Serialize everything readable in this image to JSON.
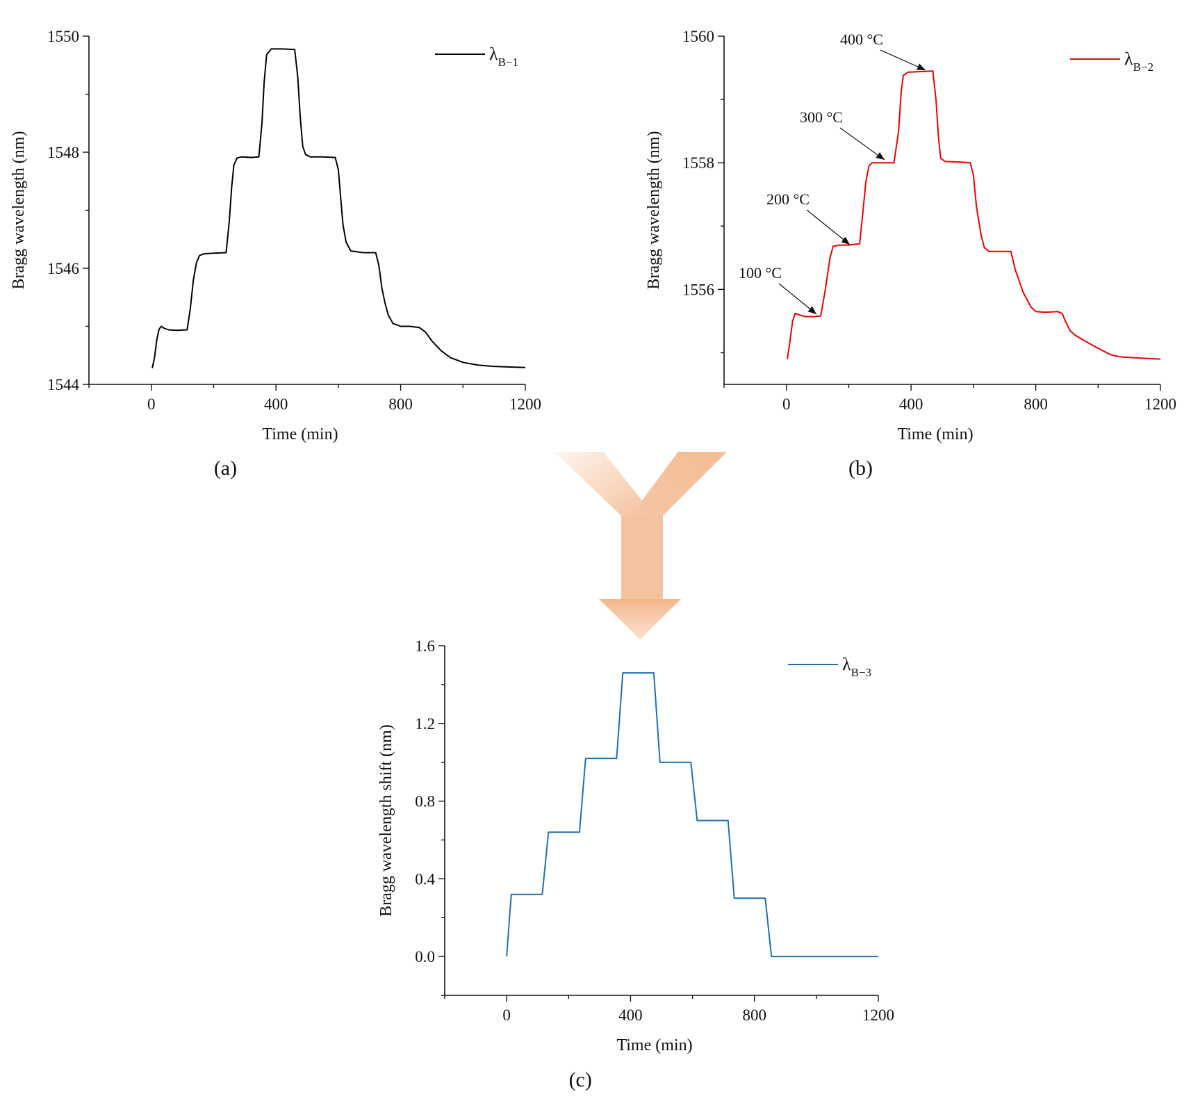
{
  "chart_data": [
    {
      "panel": "(a)",
      "type": "line",
      "xlabel": "Time (min)",
      "ylabel": "Bragg wavelength (nm)",
      "xlim": [
        -200,
        1200
      ],
      "ylim": [
        1544,
        1550
      ],
      "xticks": [
        0,
        400,
        800,
        1200
      ],
      "yticks": [
        1544,
        1546,
        1548,
        1550
      ],
      "xtick_labels": [
        "0",
        "400",
        "800",
        "1200"
      ],
      "ytick_labels": [
        "1544",
        "1546",
        "1548",
        "1550"
      ],
      "legend_position": "top-right",
      "series": [
        {
          "name": "λB−1",
          "legend_main": "λ",
          "legend_sub": "B−1",
          "color": "#000000",
          "x": [
            3,
            10,
            18,
            25,
            32,
            40,
            55,
            80,
            115,
            125,
            135,
            145,
            155,
            170,
            200,
            240,
            250,
            258,
            265,
            275,
            290,
            320,
            345,
            355,
            362,
            370,
            385,
            420,
            460,
            470,
            478,
            486,
            495,
            510,
            550,
            590,
            600,
            608,
            615,
            625,
            640,
            680,
            720,
            730,
            740,
            750,
            760,
            775,
            800,
            830,
            860,
            880,
            900,
            930,
            960,
            1000,
            1050,
            1100,
            1150,
            1200
          ],
          "y": [
            1544.28,
            1544.45,
            1544.78,
            1544.95,
            1545.0,
            1544.97,
            1544.94,
            1544.93,
            1544.94,
            1545.3,
            1545.8,
            1546.1,
            1546.22,
            1546.25,
            1546.26,
            1546.27,
            1546.8,
            1547.4,
            1547.78,
            1547.9,
            1547.92,
            1547.91,
            1547.92,
            1548.5,
            1549.2,
            1549.68,
            1549.78,
            1549.78,
            1549.77,
            1549.3,
            1548.6,
            1548.1,
            1547.96,
            1547.92,
            1547.92,
            1547.91,
            1547.7,
            1547.2,
            1546.75,
            1546.45,
            1546.3,
            1546.27,
            1546.27,
            1546.05,
            1545.65,
            1545.4,
            1545.2,
            1545.05,
            1545.0,
            1545.0,
            1544.98,
            1544.9,
            1544.75,
            1544.58,
            1544.46,
            1544.38,
            1544.33,
            1544.31,
            1544.3,
            1544.29
          ]
        }
      ]
    },
    {
      "panel": "(b)",
      "type": "line",
      "xlabel": "Time (min)",
      "ylabel": "Bragg wavelength (nm)",
      "xlim": [
        -200,
        1200
      ],
      "ylim": [
        1554.5,
        1560
      ],
      "xticks": [
        0,
        400,
        800,
        1200
      ],
      "yticks": [
        1556,
        1558,
        1560
      ],
      "xtick_labels": [
        "0",
        "400",
        "800",
        "1200"
      ],
      "ytick_labels": [
        "1556",
        "1558",
        "1560"
      ],
      "legend_position": "top-right",
      "annotations": [
        {
          "text": "100 °C",
          "x": 90,
          "y": 1555.6
        },
        {
          "text": "200 °C",
          "x": 200,
          "y": 1556.7
        },
        {
          "text": "300 °C",
          "x": 310,
          "y": 1558.0
        },
        {
          "text": "400 °C",
          "x": 440,
          "y": 1559.45
        }
      ],
      "series": [
        {
          "name": "λB−2",
          "legend_main": "λ",
          "legend_sub": "B−2",
          "color": "#ee0000",
          "x": [
            3,
            12,
            20,
            28,
            40,
            60,
            90,
            110,
            125,
            140,
            150,
            170,
            200,
            235,
            245,
            255,
            265,
            275,
            300,
            345,
            360,
            368,
            375,
            390,
            430,
            470,
            480,
            488,
            495,
            510,
            560,
            590,
            600,
            610,
            625,
            635,
            650,
            700,
            720,
            735,
            760,
            785,
            800,
            830,
            870,
            885,
            895,
            910,
            925,
            960,
            1000,
            1040,
            1055,
            1080,
            1120,
            1160,
            1200
          ],
          "y": [
            1554.9,
            1555.2,
            1555.5,
            1555.62,
            1555.6,
            1555.57,
            1555.57,
            1555.58,
            1556.0,
            1556.5,
            1556.68,
            1556.7,
            1556.7,
            1556.72,
            1557.2,
            1557.7,
            1557.95,
            1558.0,
            1558.0,
            1558.0,
            1558.5,
            1559.1,
            1559.38,
            1559.43,
            1559.44,
            1559.45,
            1559.0,
            1558.4,
            1558.07,
            1558.02,
            1558.01,
            1558.0,
            1557.8,
            1557.3,
            1556.85,
            1556.66,
            1556.6,
            1556.6,
            1556.6,
            1556.3,
            1555.95,
            1555.72,
            1555.65,
            1555.64,
            1555.65,
            1555.62,
            1555.5,
            1555.35,
            1555.28,
            1555.18,
            1555.07,
            1554.97,
            1554.95,
            1554.93,
            1554.92,
            1554.91,
            1554.9
          ]
        }
      ]
    },
    {
      "panel": "(c)",
      "type": "line",
      "xlabel": "Time (min)",
      "ylabel": "Bragg wavelength shift (nm)",
      "xlim": [
        -200,
        1200
      ],
      "ylim": [
        -0.2,
        1.6
      ],
      "xticks": [
        0,
        400,
        800,
        1200
      ],
      "yticks": [
        0.0,
        0.4,
        0.8,
        1.2,
        1.6
      ],
      "xtick_labels": [
        "0",
        "400",
        "800",
        "1200"
      ],
      "ytick_labels": [
        "0.0",
        "0.4",
        "0.8",
        "1.2",
        "1.6"
      ],
      "legend_position": "top-right",
      "series": [
        {
          "name": "λB−3",
          "legend_main": "λ",
          "legend_sub": "B−3",
          "color": "#1f6fb0",
          "x": [
            0,
            15,
            115,
            135,
            235,
            255,
            355,
            375,
            475,
            495,
            595,
            615,
            715,
            735,
            835,
            855,
            1200
          ],
          "y": [
            0.0,
            0.32,
            0.32,
            0.64,
            0.64,
            1.02,
            1.02,
            1.46,
            1.46,
            1.0,
            1.0,
            0.7,
            0.7,
            0.3,
            0.3,
            0.0,
            0.0
          ]
        }
      ]
    }
  ]
}
